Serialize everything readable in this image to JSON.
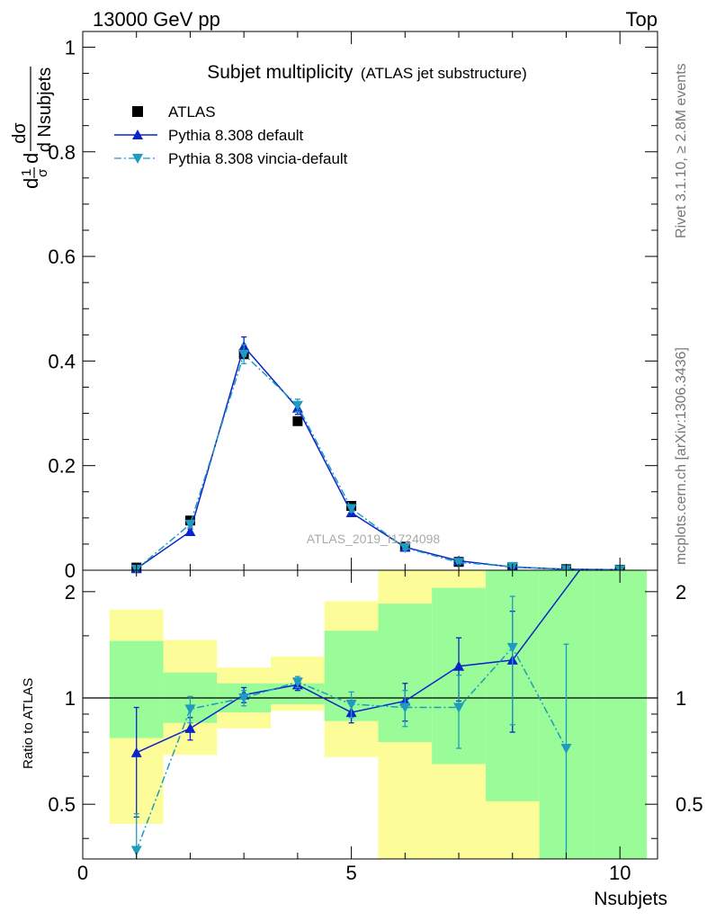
{
  "header": {
    "energy_label": "13000 GeV pp",
    "process_label": "Top"
  },
  "side_labels": {
    "rivet": "Rivet 3.1.10, ≥ 2.8M events",
    "mcplots": "mcplots.cern.ch [arXiv:1306.3436]"
  },
  "chart_data": [
    {
      "type": "scatter",
      "panel": "main",
      "title": "Subjet multiplicity",
      "subtitle": "(ATLAS jet substructure)",
      "ylabel_parts": {
        "num_d": "d",
        "one": "1",
        "sigma": "σ",
        "d2": "d",
        "dsigma": "dσ",
        "dnsub": "d Nsubjets"
      },
      "watermark": "ATLAS_2019_I1724098",
      "xlim": [
        0,
        10.7
      ],
      "ylim": [
        0,
        1.03
      ],
      "y_ticks": [
        0,
        0.2,
        0.4,
        0.6,
        0.8,
        1
      ],
      "y_tick_labels": [
        "0",
        "0.2",
        "0.4",
        "0.6",
        "0.8",
        "1"
      ],
      "legend": "top-left",
      "series": [
        {
          "name": "ATLAS",
          "color": "#000000",
          "marker": "square",
          "x": [
            1,
            2,
            3,
            4,
            5,
            6,
            7,
            8,
            9,
            10
          ],
          "y": [
            0.005,
            0.095,
            0.413,
            0.285,
            0.123,
            0.045,
            0.016,
            0.005,
            0.002,
            0.001
          ]
        },
        {
          "name": "Pythia 8.308 default",
          "color": "#0b24c9",
          "marker": "triangle-up",
          "line": "solid",
          "x": [
            1,
            2,
            3,
            4,
            5,
            6,
            7,
            8,
            9,
            10
          ],
          "y": [
            0.003,
            0.074,
            0.428,
            0.31,
            0.11,
            0.044,
            0.018,
            0.006,
            0.002,
            0.001
          ],
          "err": [
            0.002,
            0.005,
            0.018,
            0.012,
            0.007,
            0.004,
            0.002,
            0.001,
            0.001,
            0.001
          ]
        },
        {
          "name": "Pythia 8.308 vincia-default",
          "color": "#1f9bbf",
          "marker": "triangle-down",
          "line": "dashdot",
          "x": [
            1,
            2,
            3,
            4,
            5,
            6,
            7,
            8,
            9,
            10
          ],
          "y": [
            0.002,
            0.088,
            0.413,
            0.315,
            0.118,
            0.043,
            0.015,
            0.007,
            0.001,
            0.001
          ],
          "err": [
            0.002,
            0.006,
            0.018,
            0.012,
            0.007,
            0.004,
            0.002,
            0.001,
            0.001,
            0.001
          ]
        }
      ]
    },
    {
      "type": "scatter",
      "panel": "ratio",
      "ylabel": "Ratio to ATLAS",
      "xlabel": "Nsubjets",
      "xlim": [
        0,
        10.7
      ],
      "ylim": [
        0.35,
        2.3
      ],
      "x_ticks": [
        0,
        5,
        10
      ],
      "x_tick_labels": [
        "0",
        "5",
        "10"
      ],
      "y_ticks": [
        0.5,
        1,
        2
      ],
      "y_tick_labels": [
        "0.5",
        "1",
        "2"
      ],
      "bands": {
        "green_color": "#99fc99",
        "yellow_color": "#fcfc99",
        "x_low": [
          0.5,
          1.5,
          2.5,
          3.5,
          4.5,
          5.5,
          6.5,
          7.5,
          8.5,
          9.5
        ],
        "x_high": [
          1.5,
          2.5,
          3.5,
          4.5,
          5.5,
          6.5,
          7.5,
          8.5,
          9.5,
          10.5
        ],
        "green_low": [
          0.77,
          0.85,
          0.91,
          0.96,
          0.86,
          0.75,
          0.65,
          0.51,
          0.3,
          0.3
        ],
        "green_high": [
          1.45,
          1.18,
          1.1,
          1.1,
          1.55,
          1.85,
          2.05,
          2.4,
          2.5,
          2.5
        ],
        "yellow_low": [
          0.44,
          0.69,
          0.82,
          0.92,
          0.68,
          0.3,
          0.3,
          0.3,
          0.3,
          0.3
        ],
        "yellow_high": [
          1.78,
          1.46,
          1.22,
          1.31,
          1.88,
          2.5,
          2.5,
          2.5,
          2.5,
          2.5
        ]
      },
      "series": [
        {
          "name": "Pythia 8.308 default",
          "color": "#0b24c9",
          "marker": "triangle-up",
          "line": "solid",
          "x": [
            1,
            2,
            3,
            4,
            5,
            6,
            7,
            8,
            9.25
          ],
          "y": [
            0.7,
            0.82,
            1.02,
            1.09,
            0.91,
            0.98,
            1.23,
            1.28,
            2.3
          ],
          "err": [
            0.24,
            0.06,
            0.05,
            0.04,
            0.06,
            0.12,
            0.25,
            0.48,
            0.0
          ]
        },
        {
          "name": "Pythia 8.308 vincia-default",
          "color": "#1f9bbf",
          "marker": "triangle-down",
          "line": "dashdot",
          "x": [
            1,
            2,
            3,
            4,
            5,
            6,
            7,
            8,
            9
          ],
          "y": [
            0.37,
            0.93,
            1.0,
            1.11,
            0.96,
            0.94,
            0.94,
            1.39,
            0.72
          ],
          "err": [
            0.1,
            0.08,
            0.05,
            0.04,
            0.08,
            0.11,
            0.22,
            0.55,
            0.7
          ]
        }
      ]
    }
  ]
}
